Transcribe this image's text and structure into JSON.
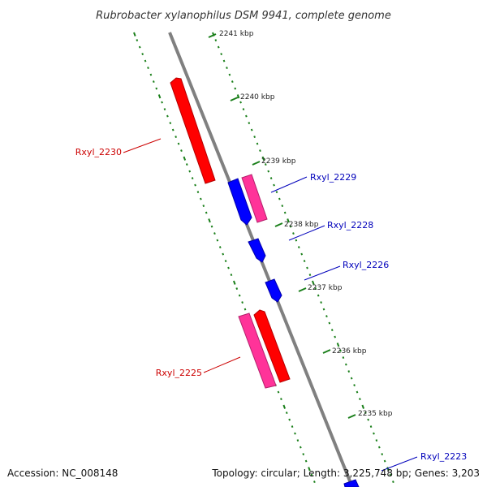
{
  "title": "Rubrobacter xylanophilus DSM 9941, complete genome",
  "footer": {
    "accession": "Accession: NC_008148",
    "summary": "Topology: circular; Length: 3,225,748 bp; Genes: 3,203"
  },
  "ticks": [
    "2241 kbp",
    "2240 kbp",
    "2239 kbp",
    "2238 kbp",
    "2237 kbp",
    "2236 kbp",
    "2235 kbp"
  ],
  "gene_labels": [
    {
      "name": "Rxyl_2230",
      "color": "#cc0000"
    },
    {
      "name": "Rxyl_2229",
      "color": "#0000bb"
    },
    {
      "name": "Rxyl_2228",
      "color": "#0000bb"
    },
    {
      "name": "Rxyl_2226",
      "color": "#0000bb"
    },
    {
      "name": "Rxyl_2225",
      "color": "#cc0000"
    },
    {
      "name": "Rxyl_2223",
      "color": "#0000bb"
    }
  ],
  "colors": {
    "backbone": "#808080",
    "tick_dash": "#1a7f1a",
    "gene_red": "#ff0000",
    "gene_pink": "#ff3399",
    "gene_blue": "#0000ff"
  }
}
